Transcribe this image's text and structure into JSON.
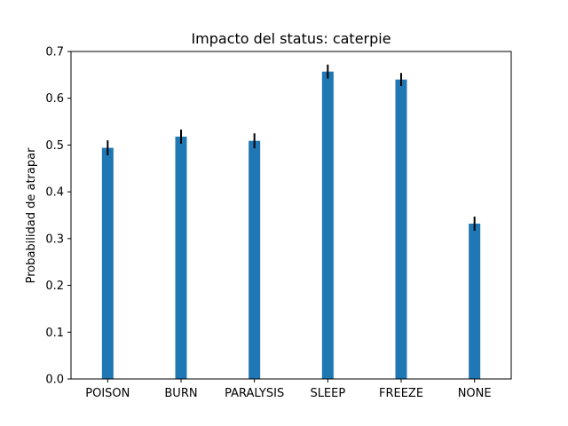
{
  "chart_data": {
    "type": "bar",
    "title": "Impacto del status: caterpie",
    "xlabel": "",
    "ylabel": "Probabilidad de atrapar",
    "categories": [
      "POISON",
      "BURN",
      "PARALYSIS",
      "SLEEP",
      "FREEZE",
      "NONE"
    ],
    "values": [
      0.494,
      0.518,
      0.509,
      0.657,
      0.64,
      0.332
    ],
    "errors": [
      0.016,
      0.015,
      0.016,
      0.015,
      0.014,
      0.015
    ],
    "ylim": [
      0,
      0.7
    ],
    "yticks": [
      "0.0",
      "0.1",
      "0.2",
      "0.3",
      "0.4",
      "0.5",
      "0.6",
      "0.7"
    ],
    "grid": false,
    "bar_color": "#1f77b4",
    "error_color": "#000000"
  }
}
